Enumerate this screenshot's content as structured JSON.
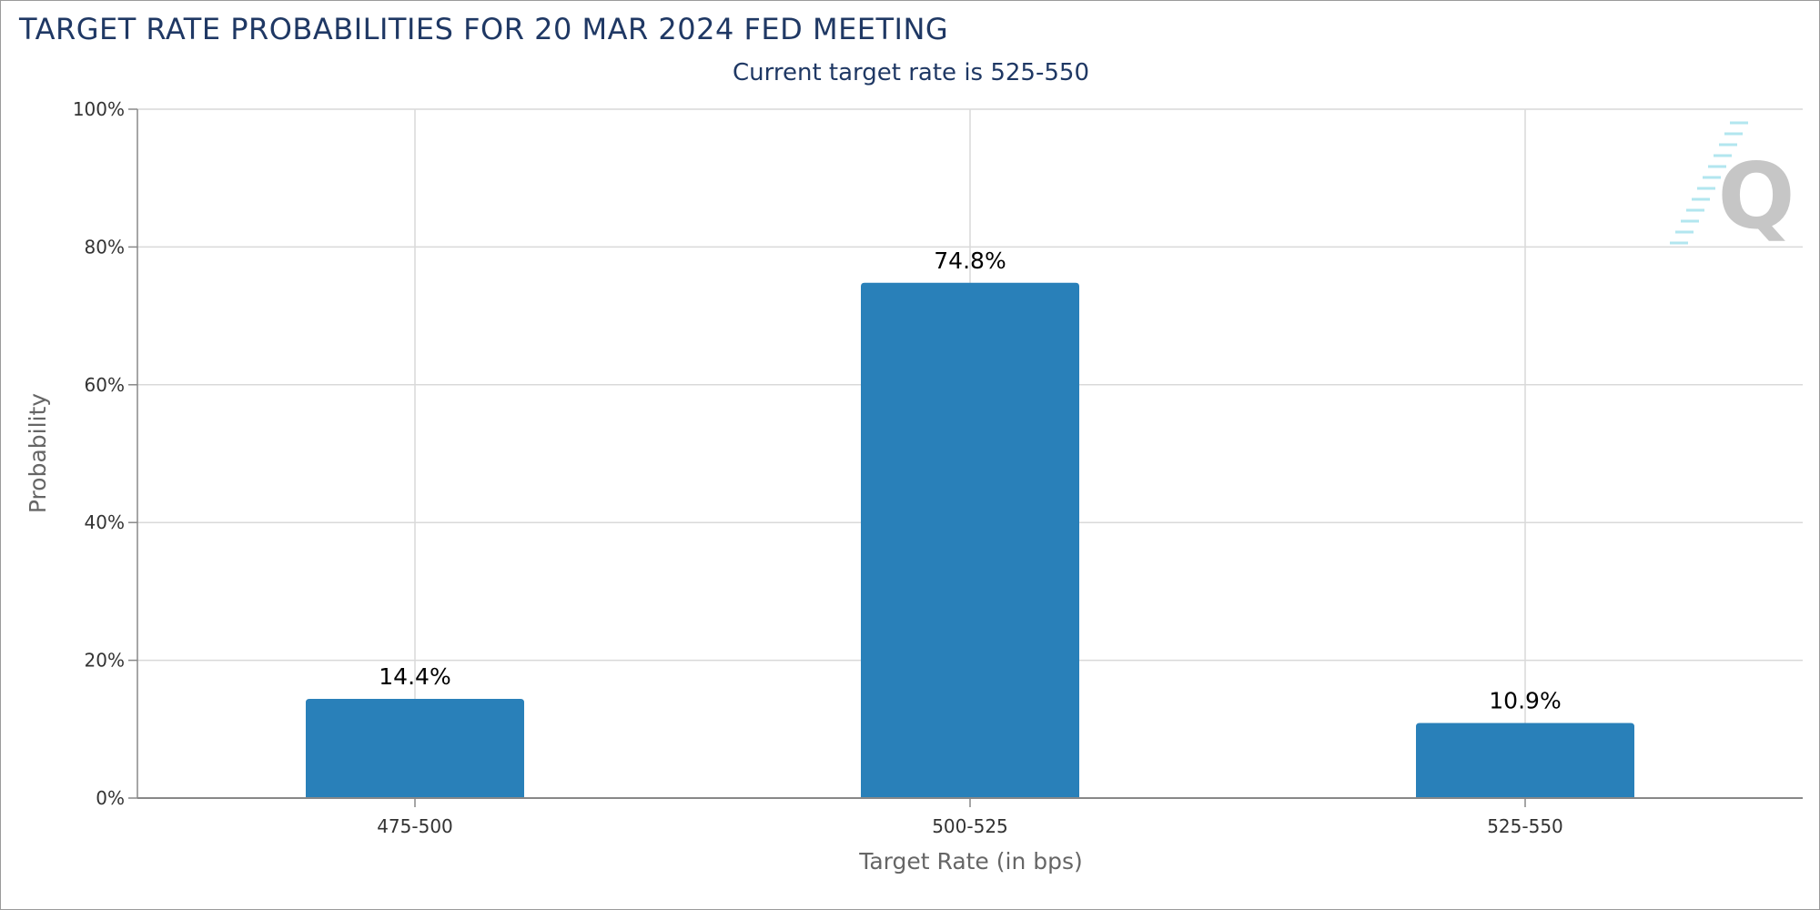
{
  "header": {
    "title": "TARGET RATE PROBABILITIES FOR 20 MAR 2024 FED MEETING",
    "subtitle": "Current target rate is 525-550"
  },
  "colors": {
    "bar": "#2980b9",
    "title": "#1f3864",
    "grid": "#d9d9d9",
    "axis": "#888888",
    "watermark": "#b3b3b3",
    "watermark_accent": "#7fd6e6"
  },
  "watermark": {
    "icon": "quikstrike-q-logo-icon",
    "letter": "Q"
  },
  "chart_data": {
    "type": "bar",
    "title": "TARGET RATE PROBABILITIES FOR 20 MAR 2024 FED MEETING",
    "subtitle": "Current target rate is 525-550",
    "xlabel": "Target Rate (in bps)",
    "ylabel": "Probability",
    "categories": [
      "475-500",
      "500-525",
      "525-550"
    ],
    "values": [
      14.4,
      74.8,
      10.9
    ],
    "data_labels": [
      "14.4%",
      "74.8%",
      "10.9%"
    ],
    "ylim": [
      0,
      100
    ],
    "yticks": [
      0,
      20,
      40,
      60,
      80,
      100
    ],
    "ytick_labels": [
      "0%",
      "20%",
      "40%",
      "60%",
      "80%",
      "100%"
    ],
    "grid": true,
    "legend": "none"
  }
}
